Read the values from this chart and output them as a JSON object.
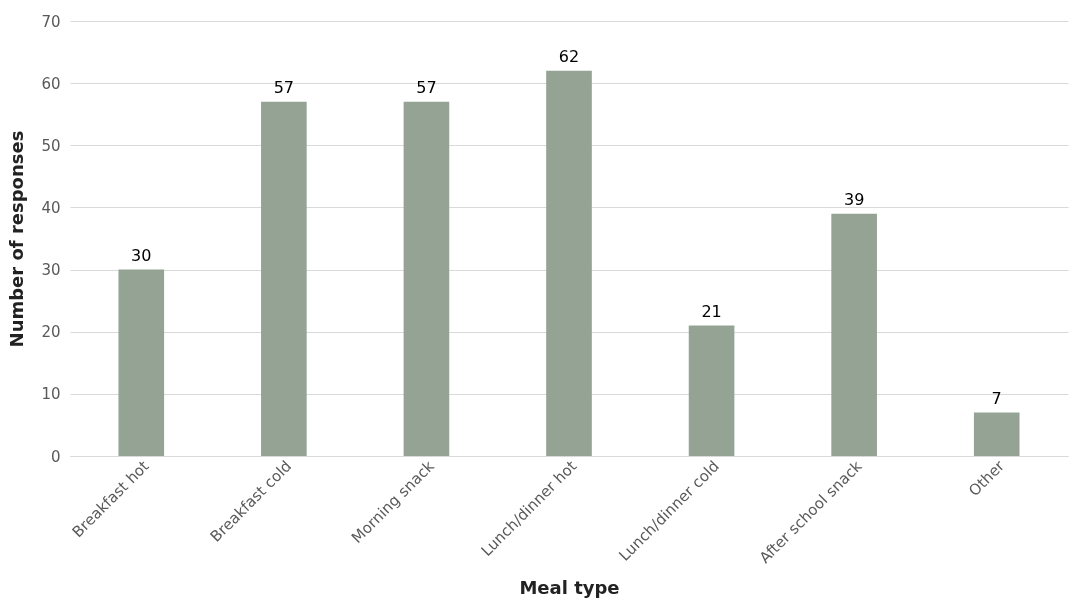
{
  "chart_data": {
    "type": "bar",
    "xlabel": "Meal type",
    "ylabel": "Number of responses",
    "categories": [
      "Breakfast hot",
      "Breakfast cold",
      "Morning snack",
      "Lunch/dinner hot",
      "Lunch/dinner cold",
      "After school snack",
      "Other"
    ],
    "values": [
      30,
      57,
      57,
      62,
      21,
      39,
      7
    ],
    "color": "#95a394",
    "ylim": [
      0,
      70
    ],
    "yticks": [
      0,
      10,
      20,
      30,
      40,
      50,
      60,
      70
    ],
    "grid": "y",
    "data_labels": true
  }
}
